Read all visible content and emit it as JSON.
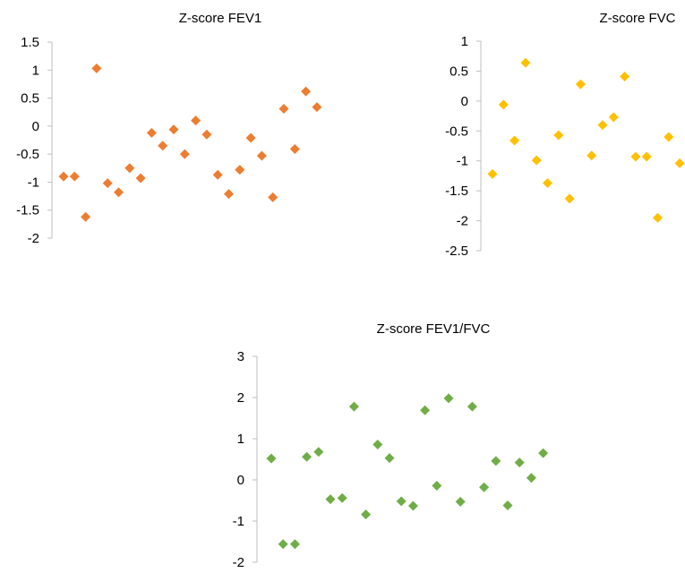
{
  "chart_data": [
    {
      "type": "scatter",
      "title": "Z-score FEV1",
      "xlabel": "",
      "ylabel": "",
      "ylim": [
        -2,
        1.5
      ],
      "yticks": [
        "1.5",
        "1",
        "0.5",
        "0",
        "-0.5",
        "-1",
        "-1.5",
        "-2"
      ],
      "grid": false,
      "legend": false,
      "marker": "diamond",
      "color": "#ED7D31",
      "x": [
        1,
        2,
        3,
        4,
        5,
        6,
        7,
        8,
        9,
        10,
        11,
        12,
        13,
        14,
        15,
        16,
        17,
        18,
        19,
        20,
        21,
        22,
        23,
        24,
        25
      ],
      "y": [
        -0.9,
        -0.9,
        -1.62,
        1.03,
        -1.02,
        -1.18,
        -0.75,
        -0.93,
        -0.12,
        -0.35,
        -0.06,
        -0.5,
        0.1,
        -0.15,
        -0.87,
        -1.21,
        -0.78,
        -0.21,
        -0.53,
        -1.27,
        0.31,
        -0.41,
        0.62,
        0.34,
        null
      ]
    },
    {
      "type": "scatter",
      "title": "Z-score FVC",
      "xlabel": "",
      "ylabel": "",
      "ylim": [
        -2.5,
        1
      ],
      "yticks": [
        "1",
        "0.5",
        "0",
        "-0.5",
        "-1",
        "-1.5",
        "-2",
        "-2.5"
      ],
      "grid": false,
      "legend": false,
      "marker": "diamond",
      "color": "#FFC000",
      "x": [
        1,
        2,
        3,
        4,
        5,
        6,
        7,
        8,
        9,
        10,
        11,
        12,
        13,
        14,
        15,
        16,
        17,
        18,
        19,
        20
      ],
      "y": [
        -1.22,
        -0.06,
        -0.66,
        0.64,
        -0.99,
        -1.37,
        -0.57,
        -1.63,
        0.28,
        -0.91,
        -0.4,
        -0.27,
        0.41,
        -0.93,
        -0.93,
        -1.95,
        -0.6,
        -1.04,
        null,
        null
      ]
    },
    {
      "type": "scatter",
      "title": "Z-score FEV1/FVC",
      "xlabel": "",
      "ylabel": "",
      "ylim": [
        -2,
        3
      ],
      "yticks": [
        "3",
        "2",
        "1",
        "0",
        "-1",
        "-2"
      ],
      "grid": false,
      "legend": false,
      "marker": "diamond",
      "color": "#70AD47",
      "x": [
        1,
        2,
        3,
        4,
        5,
        6,
        7,
        8,
        9,
        10,
        11,
        12,
        13,
        14,
        15,
        16,
        17,
        18,
        19,
        20,
        21,
        22,
        23,
        24
      ],
      "y": [
        0.52,
        -1.56,
        -1.56,
        0.56,
        0.68,
        -0.47,
        -0.44,
        1.78,
        -0.84,
        0.86,
        0.53,
        -0.52,
        -0.63,
        1.69,
        -0.14,
        1.98,
        -0.53,
        1.78,
        -0.18,
        0.46,
        -0.62,
        0.42,
        0.05,
        0.65
      ]
    }
  ]
}
